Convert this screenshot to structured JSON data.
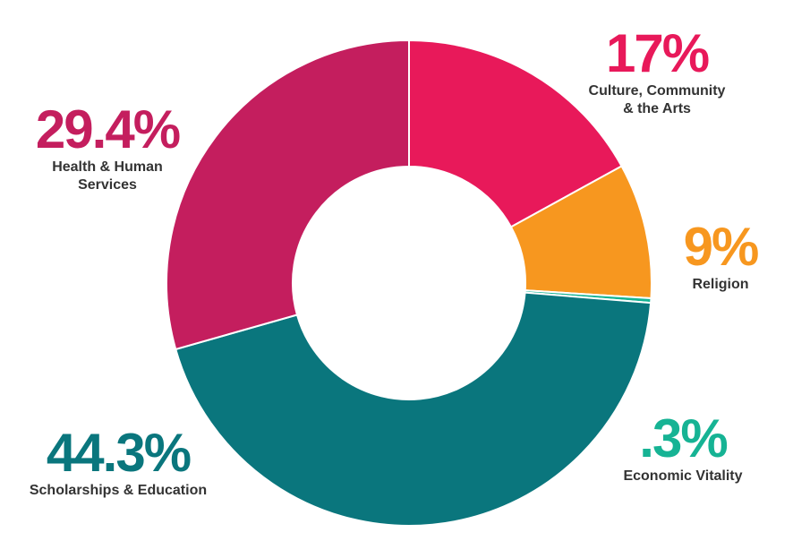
{
  "chart_data": {
    "type": "pie",
    "donut": true,
    "slices": [
      {
        "pct_label": "17%",
        "value": 17,
        "label": "Culture, Community & the Arts",
        "label_lines": [
          "Culture, Community",
          "& the Arts"
        ],
        "color": "#E8195A"
      },
      {
        "pct_label": "9%",
        "value": 9,
        "label": "Religion",
        "label_lines": [
          "Religion"
        ],
        "color": "#F7971F"
      },
      {
        "pct_label": ".3%",
        "value": 0.3,
        "label": "Economic Vitality",
        "label_lines": [
          "Economic Vitality"
        ],
        "color": "#16B394"
      },
      {
        "pct_label": "44.3%",
        "value": 44.3,
        "label": "Scholarships & Education",
        "label_lines": [
          "Scholarships & Education"
        ],
        "color": "#0A767D"
      },
      {
        "pct_label": "29.4%",
        "value": 29.4,
        "label": "Health & Human Services",
        "label_lines": [
          "Health & Human",
          "Services"
        ],
        "color": "#C41E5E"
      }
    ]
  }
}
